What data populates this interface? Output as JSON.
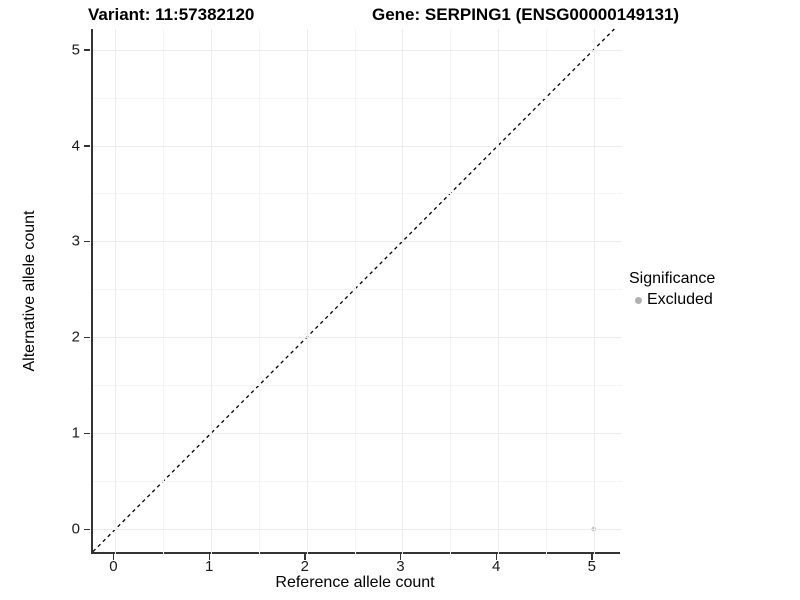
{
  "titles": {
    "variant": "Variant: 11:57382120",
    "gene": "Gene: SERPING1 (ENSG00000149131)"
  },
  "chart_data": {
    "type": "scatter",
    "title_left": "Variant: 11:57382120",
    "title_right": "Gene: SERPING1 (ENSG00000149131)",
    "xlabel": "Reference allele count",
    "ylabel": "Alternative allele count",
    "xlim": [
      -0.235,
      5.295
    ],
    "ylim": [
      -0.26,
      5.215
    ],
    "xticks": [
      0,
      1,
      2,
      3,
      4,
      5
    ],
    "yticks": [
      0,
      1,
      2,
      3,
      4,
      5
    ],
    "minor_step": 0.5,
    "grid": "major+minor",
    "points": [
      {
        "x": 5,
        "y": 0,
        "series": "Excluded"
      }
    ],
    "reference_line": {
      "kind": "identity",
      "equation": "y = x",
      "style": "dashed",
      "color": "#000000"
    },
    "legend": {
      "title": "Significance",
      "position": "right",
      "entries": [
        {
          "label": "Excluded",
          "color": "#bebebe",
          "marker": "circle"
        }
      ]
    },
    "colors": {
      "point": "#c2c2c2",
      "legend_dot": "#b0b0b0",
      "grid_major": "#ececec",
      "grid_minor": "#f4f4f4",
      "axis_line": "#333333",
      "dashed_line": "#000000"
    }
  }
}
